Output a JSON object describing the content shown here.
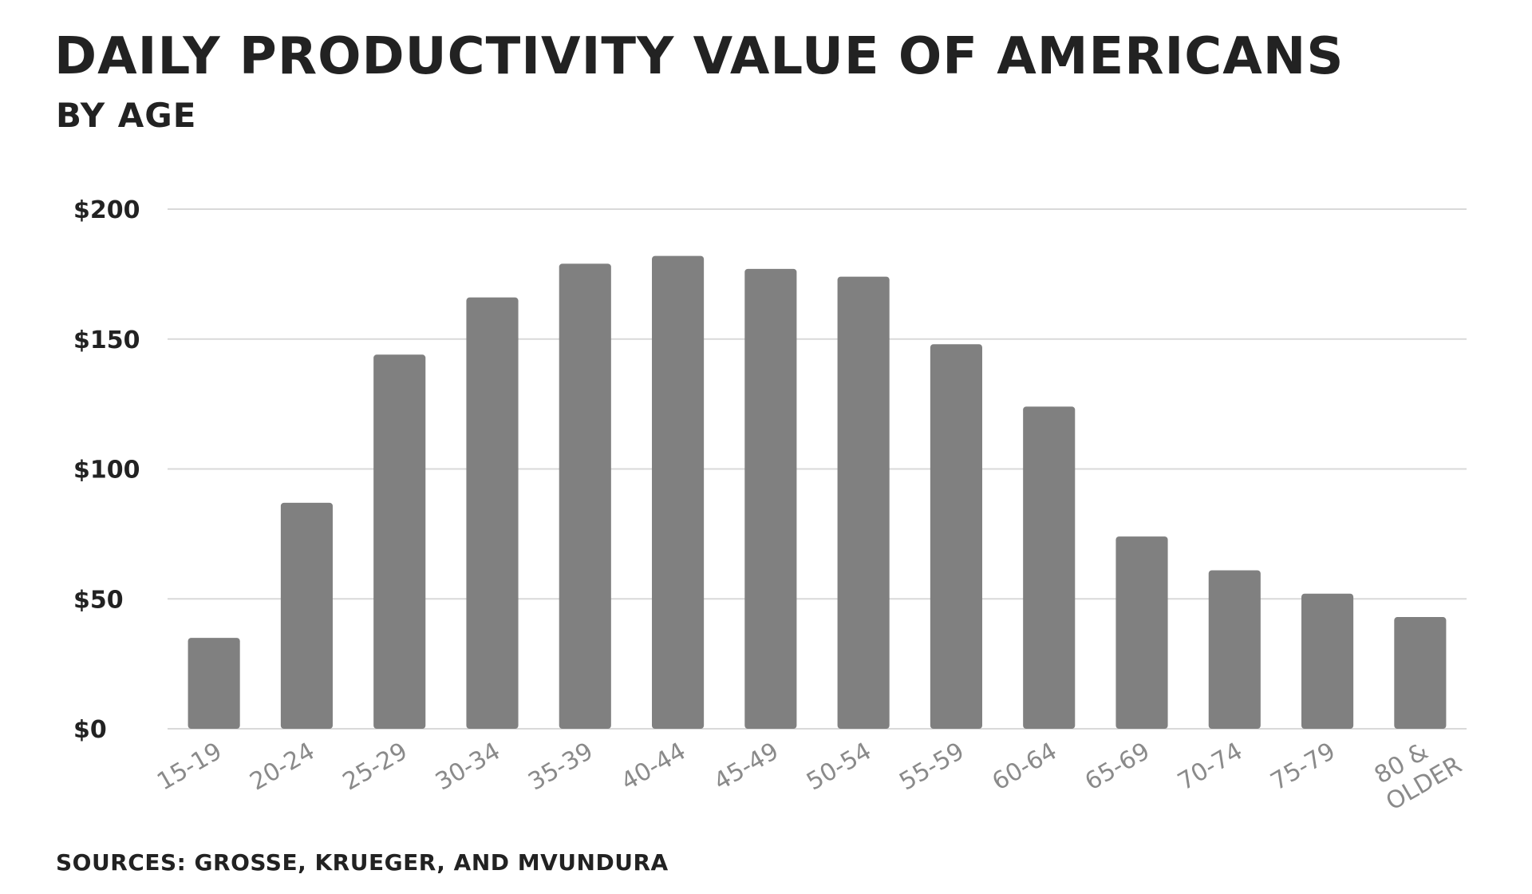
{
  "chart_data": {
    "type": "bar",
    "title": "DAILY PRODUCTIVITY VALUE OF AMERICANS",
    "subtitle": "BY AGE",
    "source": "SOURCES: GROSSE, KRUEGER, AND MVUNDURA",
    "categories": [
      "15-19",
      "20-24",
      "25-29",
      "30-34",
      "35-39",
      "40-44",
      "45-49",
      "50-54",
      "55-59",
      "60-64",
      "65-69",
      "70-74",
      "75-79",
      "80 & OLDER"
    ],
    "values": [
      35,
      87,
      144,
      166,
      179,
      182,
      177,
      174,
      148,
      124,
      74,
      61,
      52,
      43
    ],
    "ylim": [
      0,
      200
    ],
    "yticks": [
      0,
      50,
      100,
      150,
      200
    ],
    "ytick_labels": [
      "$0",
      "$50",
      "$100",
      "$150",
      "$200"
    ],
    "grid": true,
    "legend": false,
    "colors": {
      "bar": "#808080",
      "grid": "#d9d9d9",
      "text": "#222222",
      "xtick_text": "#8a8a8a"
    }
  }
}
